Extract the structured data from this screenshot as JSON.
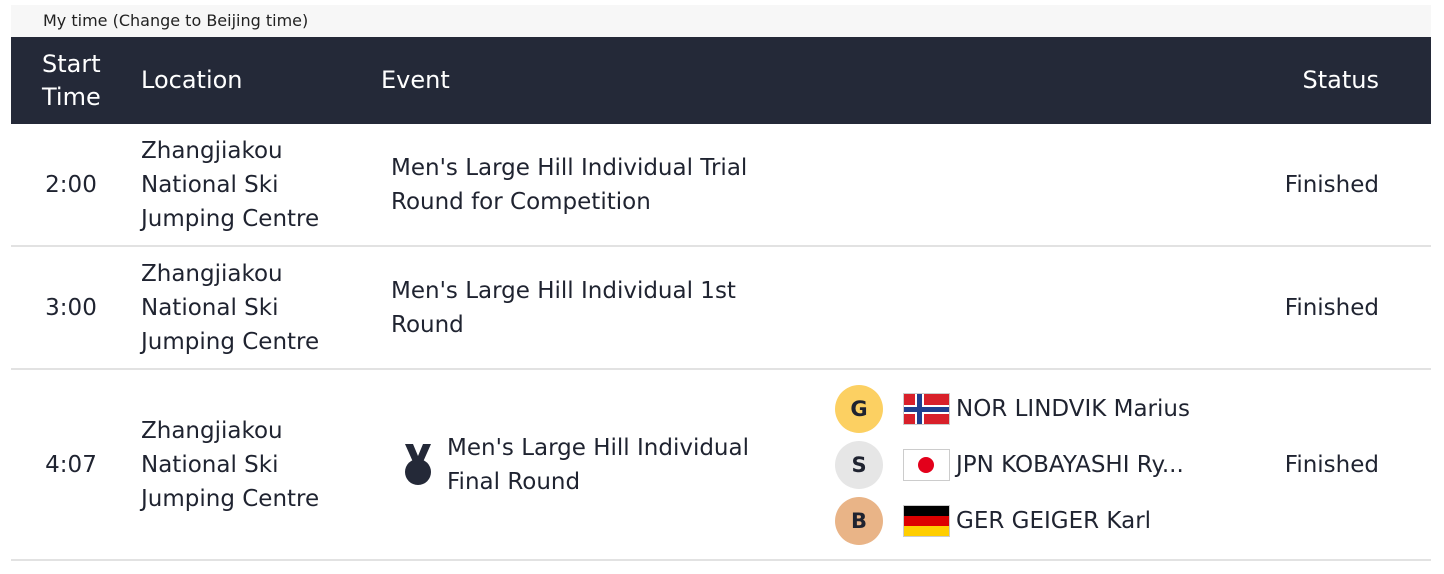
{
  "time_toggle": "My time (Change to Beijing time)",
  "header": {
    "start_time": "Start Time",
    "location": "Location",
    "event": "Event",
    "status": "Status"
  },
  "rows": [
    {
      "time": "2:00",
      "location": "Zhangjiakou National Ski Jumping Centre",
      "event": "Men's Large Hill Individual Trial Round for Competition",
      "status": "Finished"
    },
    {
      "time": "3:00",
      "location": "Zhangjiakou National Ski Jumping Centre",
      "event": "Men's Large Hill Individual 1st Round",
      "status": "Finished"
    },
    {
      "time": "4:07",
      "location": "Zhangjiakou National Ski Jumping Centre",
      "event": "Men's Large Hill Individual Final Round",
      "event_icon": "medal-icon",
      "status": "Finished",
      "medals": [
        {
          "label": "G",
          "color": "#fcd062",
          "flag": "norway-flag",
          "name": "NOR LINDVIK Marius"
        },
        {
          "label": "S",
          "color": "#e6e6e6",
          "flag": "japan-flag",
          "name": "JPN KOBAYASHI Ry..."
        },
        {
          "label": "B",
          "color": "#e9b487",
          "flag": "germany-flag",
          "name": "GER GEIGER Karl"
        }
      ]
    }
  ]
}
